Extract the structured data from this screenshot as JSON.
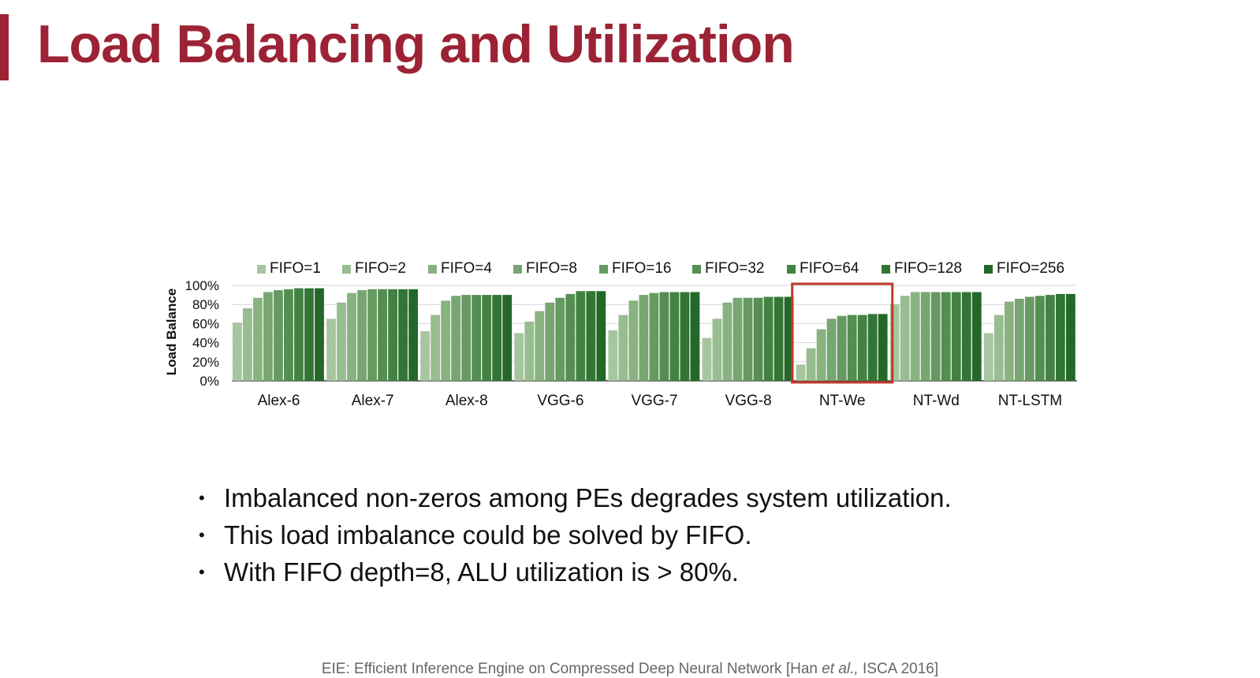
{
  "slide": {
    "title": "Load Balancing and Utilization",
    "bullets": [
      "Imbalanced non-zeros among PEs degrades system utilization.",
      "This load imbalance could be solved by FIFO.",
      "With FIFO depth=8, ALU utilization is > 80%."
    ],
    "citation": {
      "prefix": "EIE: Efficient Inference Engine on Compressed Deep Neural Network [Han ",
      "italic": "et al.,",
      "suffix": " ISCA 2016]"
    },
    "accent_color": "#9b2335"
  },
  "chart_data": {
    "type": "bar",
    "ylabel": "Load Balance",
    "ylim": [
      0,
      100
    ],
    "y_ticks": [
      "0%",
      "20%",
      "40%",
      "60%",
      "80%",
      "100%"
    ],
    "categories": [
      "Alex-6",
      "Alex-7",
      "Alex-8",
      "VGG-6",
      "VGG-7",
      "VGG-8",
      "NT-We",
      "NT-Wd",
      "NT-LSTM"
    ],
    "legend_position": "top",
    "highlighted_category": "NT-We",
    "highlight_color": "#c0392b",
    "series": [
      {
        "name": "FIFO=1",
        "color": "#a7c6a0",
        "values": [
          61,
          65,
          52,
          50,
          53,
          45,
          17,
          80,
          50
        ]
      },
      {
        "name": "FIFO=2",
        "color": "#98bd90",
        "values": [
          76,
          82,
          69,
          62,
          69,
          65,
          34,
          89,
          69
        ]
      },
      {
        "name": "FIFO=4",
        "color": "#88b280",
        "values": [
          87,
          92,
          84,
          73,
          84,
          82,
          54,
          93,
          83
        ]
      },
      {
        "name": "FIFO=8",
        "color": "#77a671",
        "values": [
          93,
          95,
          89,
          82,
          90,
          87,
          65,
          93,
          86
        ]
      },
      {
        "name": "FIFO=16",
        "color": "#669a61",
        "values": [
          95,
          96,
          90,
          87,
          92,
          87,
          68,
          93,
          88
        ]
      },
      {
        "name": "FIFO=32",
        "color": "#548e51",
        "values": [
          96,
          96,
          90,
          91,
          93,
          87,
          69,
          93,
          89
        ]
      },
      {
        "name": "FIFO=64",
        "color": "#438243",
        "values": [
          97,
          96,
          90,
          94,
          93,
          88,
          69,
          93,
          90
        ]
      },
      {
        "name": "FIFO=128",
        "color": "#327535",
        "values": [
          97,
          96,
          90,
          94,
          93,
          88,
          70,
          93,
          91
        ]
      },
      {
        "name": "FIFO=256",
        "color": "#236828",
        "values": [
          97,
          96,
          90,
          94,
          93,
          88,
          70,
          93,
          91
        ]
      }
    ]
  }
}
